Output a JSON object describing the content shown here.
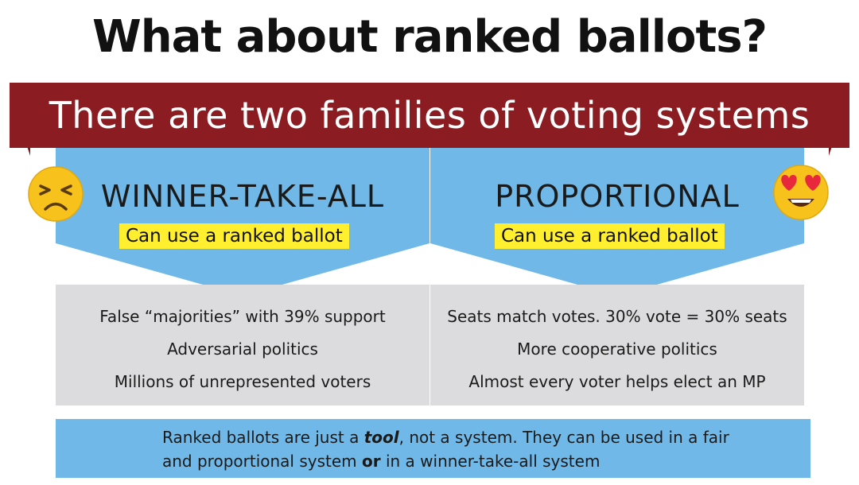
{
  "title": "What about ranked ballots?",
  "banner": "There are two families of voting systems",
  "families": [
    {
      "name": "WINNER-TAKE-ALL",
      "ranked_note": "Can use a ranked ballot",
      "emoji": "sad-face-icon",
      "points": [
        "False “majorities” with 39% support",
        "Adversarial politics",
        "Millions of unrepresented voters"
      ]
    },
    {
      "name": "PROPORTIONAL",
      "ranked_note": "Can use a ranked ballot",
      "emoji": "heart-eyes-face-icon",
      "points": [
        "Seats match votes. 30% vote = 30% seats",
        "More cooperative politics",
        "Almost every voter helps elect an MP"
      ]
    }
  ],
  "footer": {
    "part1": "Ranked ballots are just a ",
    "emphasis1": "tool",
    "part2": ", not a system. They can be used in a fair",
    "part3": "and proportional system ",
    "emphasis2": "or",
    "part4": " in a winner-take-all system"
  },
  "colors": {
    "banner": "#8a1c22",
    "arrow": "#70b8e8",
    "panel": "#dcdcde",
    "highlight": "#ffef2e"
  }
}
